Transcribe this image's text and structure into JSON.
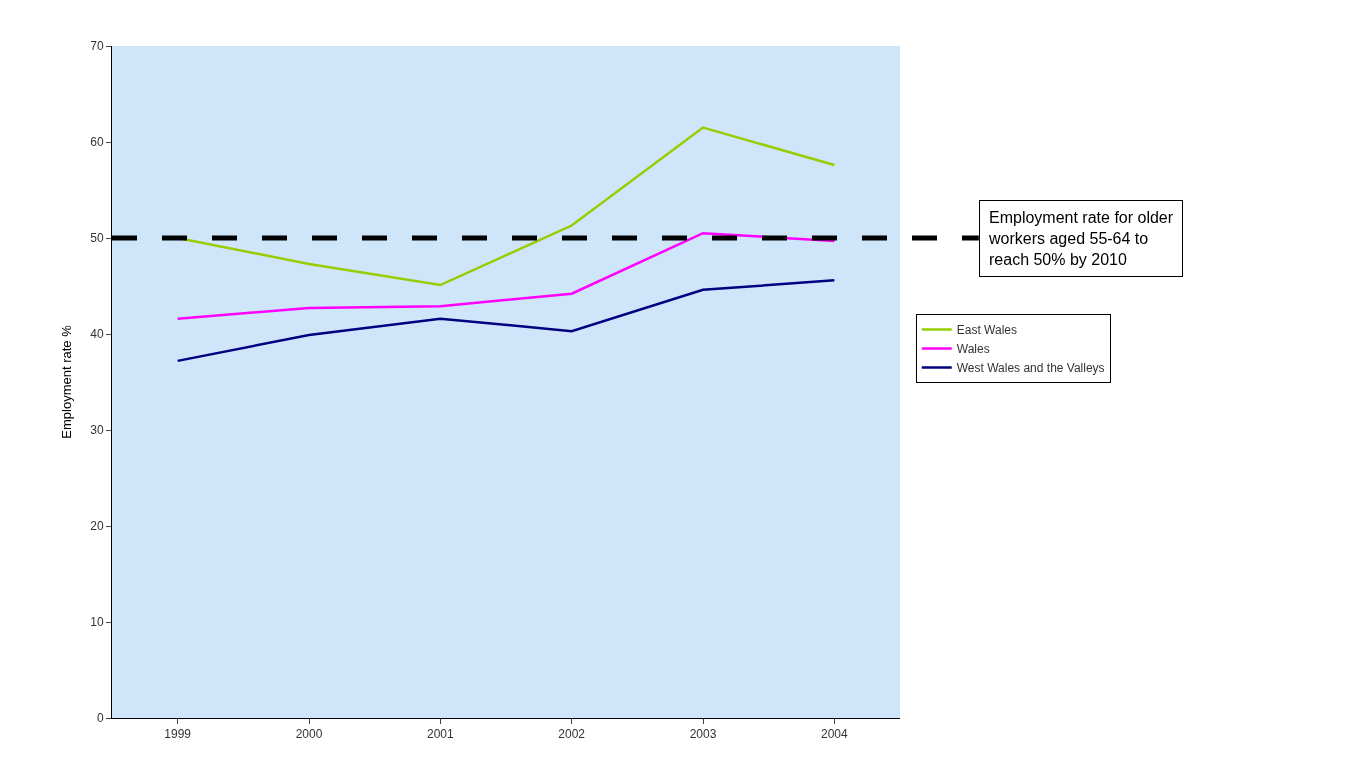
{
  "chart_data": {
    "type": "line",
    "ylabel": "Employment rate %",
    "categories": [
      "1999",
      "2000",
      "2001",
      "2002",
      "2003",
      "2004"
    ],
    "series": [
      {
        "name": "East Wales",
        "color": "#99cc00",
        "values": [
          50.0,
          47.3,
          45.1,
          51.3,
          61.5,
          57.6
        ]
      },
      {
        "name": "Wales",
        "color": "#ff00ff",
        "values": [
          41.6,
          42.7,
          42.9,
          44.2,
          50.5,
          49.7
        ]
      },
      {
        "name": "West Wales and the Valleys",
        "color": "#000080",
        "values": [
          37.2,
          39.9,
          41.6,
          40.3,
          44.6,
          45.6
        ]
      }
    ],
    "ylim": [
      0,
      70
    ],
    "yticks": [
      0,
      10,
      20,
      30,
      40,
      50,
      60,
      70
    ],
    "grid": false,
    "legend": "right",
    "marker": "none",
    "line_style": "solid",
    "ref_lines": [
      {
        "axis": "y",
        "value": 50,
        "label": "Employment rate for older workers aged 55-64 to reach 50% by 2010",
        "color": "#000000",
        "line_style": "dashed"
      }
    ]
  }
}
